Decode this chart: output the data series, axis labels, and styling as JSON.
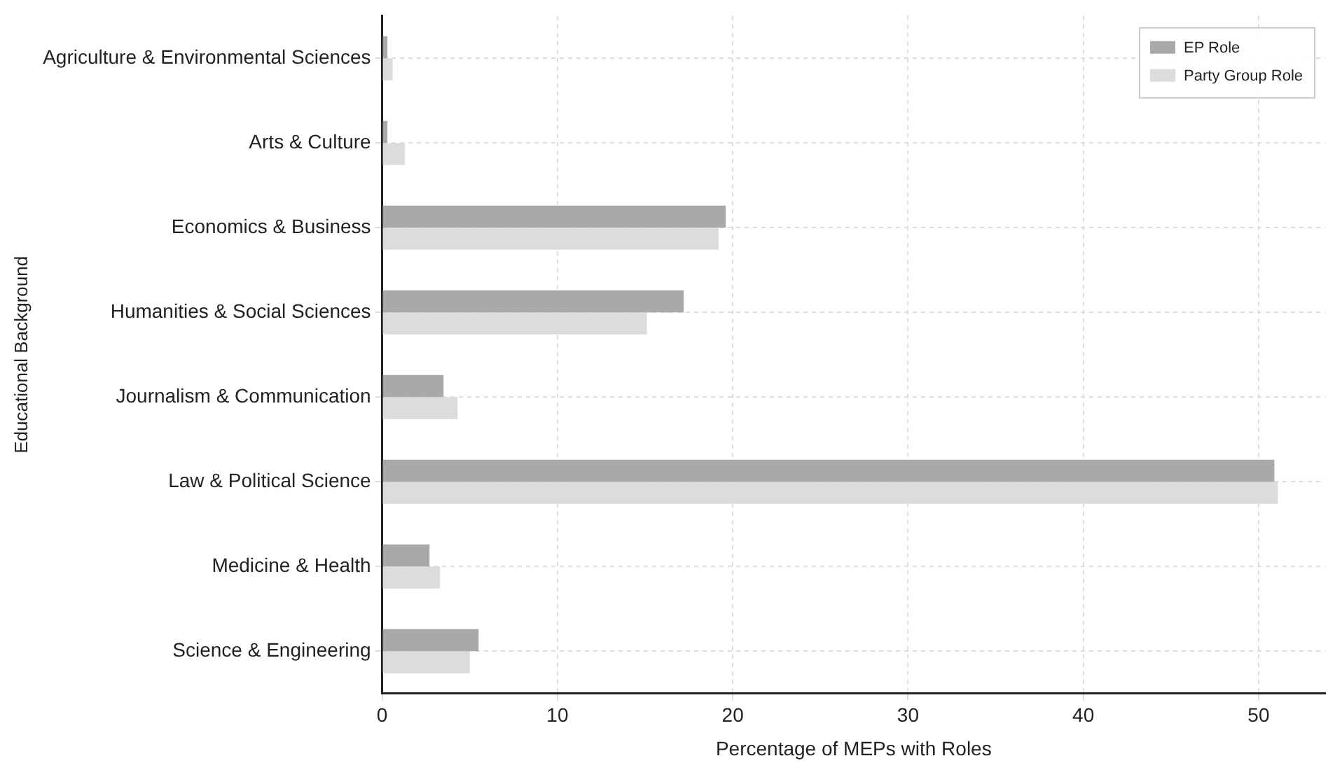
{
  "chart_data": {
    "type": "bar",
    "orientation": "horizontal",
    "xlabel": "Percentage of MEPs with Roles",
    "ylabel": "Educational Background",
    "categories": [
      "Agriculture & Environmental Sciences",
      "Arts & Culture",
      "Economics & Business",
      "Humanities & Social Sciences",
      "Journalism & Communication",
      "Law & Political Science",
      "Medicine & Health",
      "Science & Engineering"
    ],
    "series": [
      {
        "name": "EP Role",
        "color": "#a9a9a9",
        "values": [
          0.3,
          0.3,
          19.6,
          17.2,
          3.5,
          50.9,
          2.7,
          5.5
        ]
      },
      {
        "name": "Party Group Role",
        "color": "#dcdcdc",
        "values": [
          0.6,
          1.3,
          19.2,
          15.1,
          4.3,
          51.1,
          3.3,
          5.0
        ]
      }
    ],
    "xlim": [
      0,
      53.8
    ],
    "xticks": [
      0,
      10,
      20,
      30,
      40,
      50
    ],
    "grid": true,
    "legend": "top right"
  }
}
